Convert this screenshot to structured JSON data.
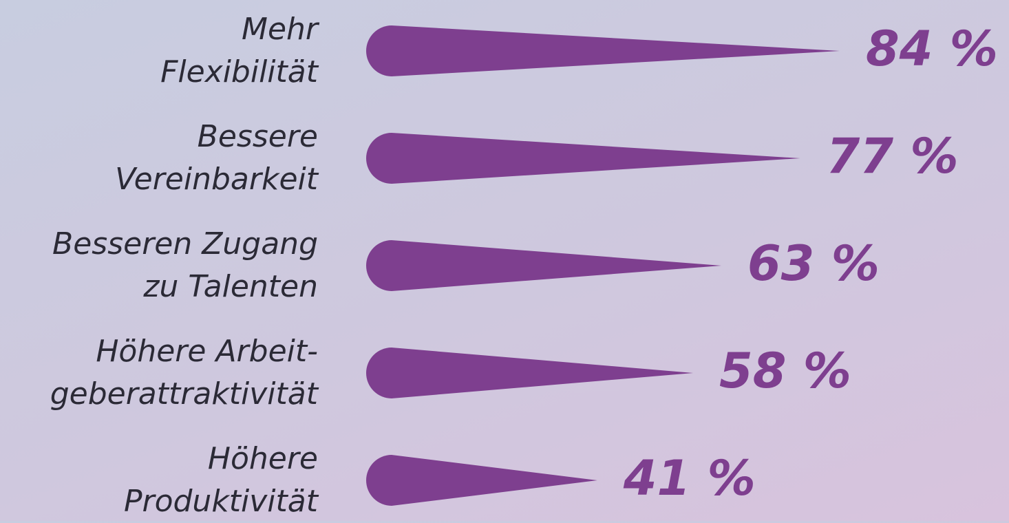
{
  "chart_data": {
    "type": "bar",
    "categories": [
      "Mehr\nFlexibilität",
      "Bessere\nVereinbarkeit",
      "Besseren Zugang\nzu Talenten",
      "Höhere Arbeit-\ngeberattraktivität",
      "Höhere\nProduktivität"
    ],
    "values": [
      84,
      77,
      63,
      58,
      41
    ],
    "value_labels": [
      "84 %",
      "77 %",
      "63 %",
      "58 %",
      "41 %"
    ],
    "color": "#7e3f8f"
  }
}
